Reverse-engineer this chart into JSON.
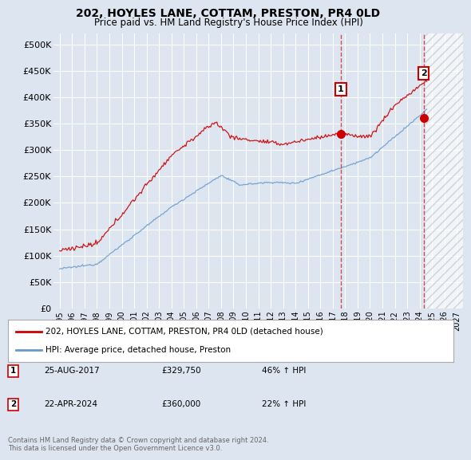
{
  "title": "202, HOYLES LANE, COTTAM, PRESTON, PR4 0LD",
  "subtitle": "Price paid vs. HM Land Registry's House Price Index (HPI)",
  "ylim": [
    0,
    520000
  ],
  "yticks": [
    0,
    50000,
    100000,
    150000,
    200000,
    250000,
    300000,
    350000,
    400000,
    450000,
    500000
  ],
  "ytick_labels": [
    "£0",
    "£50K",
    "£100K",
    "£150K",
    "£200K",
    "£250K",
    "£300K",
    "£350K",
    "£400K",
    "£450K",
    "£500K"
  ],
  "background_color": "#dde5f0",
  "plot_bg_color": "#dde5f0",
  "grid_color": "#ffffff",
  "red_line_color": "#cc0000",
  "blue_line_color": "#6699cc",
  "vline_color": "#cc3333",
  "annotation_box_color": "#cc0000",
  "sale1_date_num": 2017.65,
  "sale1_price": 329750,
  "sale2_date_num": 2024.32,
  "sale2_price": 360000,
  "sale1_date_str": "25-AUG-2017",
  "sale1_price_str": "£329,750",
  "sale1_hpi_str": "46% ↑ HPI",
  "sale2_date_str": "22-APR-2024",
  "sale2_price_str": "£360,000",
  "sale2_hpi_str": "22% ↑ HPI",
  "legend_line1": "202, HOYLES LANE, COTTAM, PRESTON, PR4 0LD (detached house)",
  "legend_line2": "HPI: Average price, detached house, Preston",
  "footer": "Contains HM Land Registry data © Crown copyright and database right 2024.\nThis data is licensed under the Open Government Licence v3.0.",
  "xlim_start": 1994.5,
  "xlim_end": 2027.5,
  "hatch_start": 2024.5
}
